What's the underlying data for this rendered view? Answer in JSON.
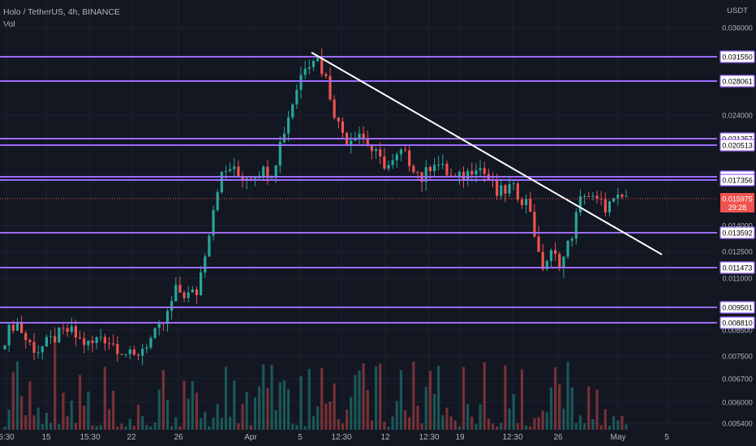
{
  "legend": {
    "symbol": "Holo / TetherUS, 4h, BINANCE",
    "volume_label": "Vol"
  },
  "currency_label": "USDT",
  "colors": {
    "background": "#131722",
    "grid": "#1e222d",
    "up": "#26a69a",
    "down": "#ef5350",
    "level": "#9c6cff",
    "trendline": "#ffffff",
    "last_price": "#ef5350",
    "axis_text": "#b2b5be"
  },
  "chart_data": {
    "type": "candlestick",
    "title": "Holo / TetherUS, 4h, BINANCE",
    "y_axis": {
      "unit": "USDT",
      "ticks": [
        0.0054,
        0.006,
        0.0067,
        0.0075,
        0.0085,
        0.011,
        0.0125,
        0.014,
        0.024,
        0.036
      ],
      "tick_labels": [
        "0.005400",
        "0.006000",
        "0.006700",
        "0.007500",
        "0.008500",
        "0.011000",
        "0.012500",
        "0.014000",
        "0.024000",
        "0.036000"
      ]
    },
    "x_axis": {
      "tick_labels": [
        "5:30",
        "15",
        "15:30",
        "22",
        "26",
        "Apr",
        "5",
        "12:30",
        "12",
        "12:30",
        "19",
        "12:30",
        "26",
        "May",
        "5"
      ]
    },
    "horizontal_levels": [
      0.03155,
      0.028061,
      0.021257,
      0.020513,
      0.017678,
      0.017356,
      0.013592,
      0.011473,
      0.009501,
      0.00881
    ],
    "horizontal_level_labels": [
      "0.031550",
      "0.028061",
      "0.021257",
      "0.020513",
      "0.017678",
      "0.017356",
      "0.013592",
      "0.011473",
      "0.009501",
      "0.008810"
    ],
    "last_price": {
      "value": 0.015975,
      "label": "0.015975",
      "countdown": "29:28"
    },
    "trendline": {
      "from": {
        "x": "Apr 5",
        "y": 0.0322
      },
      "to": {
        "x": "May 5",
        "y": 0.0123
      }
    },
    "price_path": [
      0.0082,
      0.0089,
      0.0081,
      0.0077,
      0.008,
      0.0083,
      0.0085,
      0.0081,
      0.0079,
      0.0083,
      0.008,
      0.0077,
      0.0074,
      0.0079,
      0.0083,
      0.0089,
      0.0104,
      0.0101,
      0.0103,
      0.0135,
      0.0175,
      0.0185,
      0.0176,
      0.0179,
      0.0182,
      0.0181,
      0.0219,
      0.0262,
      0.0305,
      0.0319,
      0.0283,
      0.0232,
      0.021,
      0.0222,
      0.0204,
      0.0191,
      0.0186,
      0.0198,
      0.0189,
      0.0174,
      0.0193,
      0.0182,
      0.0174,
      0.0178,
      0.0189,
      0.0177,
      0.0162,
      0.0168,
      0.0163,
      0.0154,
      0.0114,
      0.0123,
      0.0118,
      0.0137,
      0.0166,
      0.0158,
      0.0154,
      0.0157,
      0.0162
    ],
    "volume_note": "per-candle volume bars along bottom"
  }
}
